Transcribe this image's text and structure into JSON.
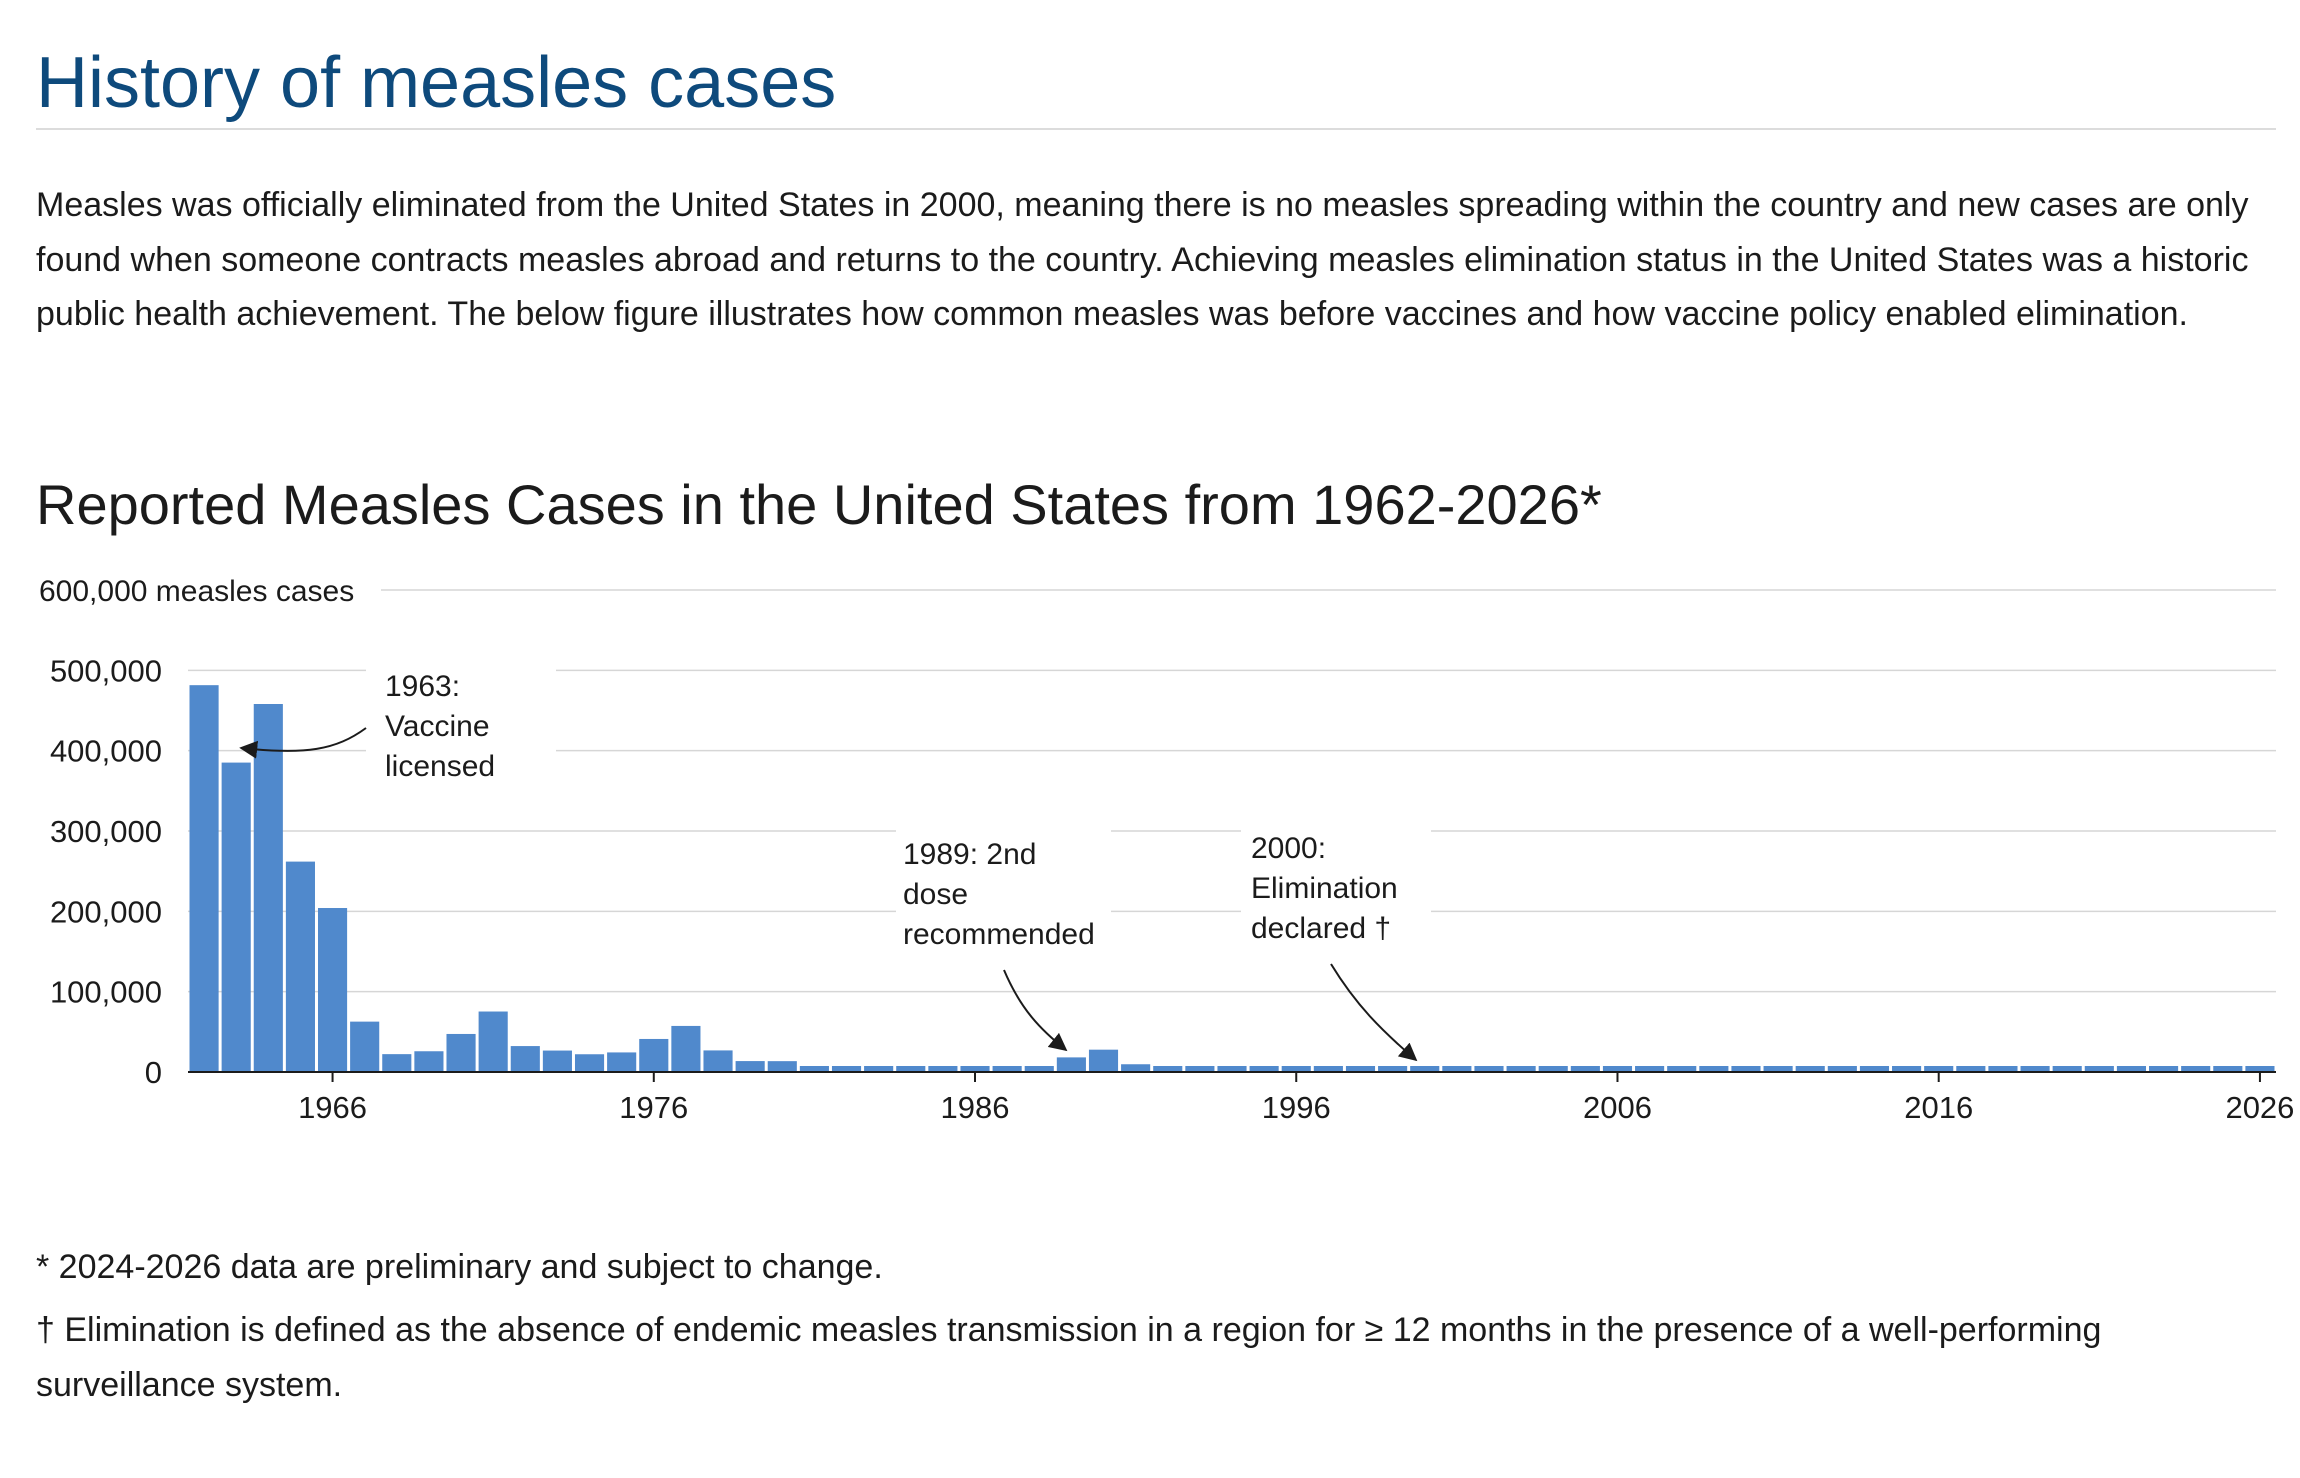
{
  "page": {
    "section_title": "History of measles cases",
    "intro": "Measles was officially eliminated from the United States in 2000, meaning there is no measles spreading within the country and new cases are only found when someone contracts measles abroad and returns to the country. Achieving measles elimination status in the United States was a historic public health achievement. The below figure illustrates how common measles was before vaccines and how vaccine policy enabled elimination.",
    "footnotes": {
      "preliminary": "* 2024-2026 data are preliminary and subject to change.",
      "elimination": "† Elimination is defined as the absence of endemic measles transmission in a region for ≥ 12 months in the presence of a well-performing surveillance system."
    }
  },
  "chart_data": {
    "type": "bar",
    "title": "Reported Measles Cases in the United States from 1962-2026*",
    "ylabel": "measles cases",
    "ylim": [
      0,
      600000
    ],
    "yticks": [
      {
        "value": 0,
        "label": "0"
      },
      {
        "value": 100000,
        "label": "100,000"
      },
      {
        "value": 200000,
        "label": "200,000"
      },
      {
        "value": 300000,
        "label": "300,000"
      },
      {
        "value": 400000,
        "label": "400,000"
      },
      {
        "value": 500000,
        "label": "500,000"
      },
      {
        "value": 600000,
        "label": "600,000 measles cases"
      }
    ],
    "xticks": [
      1966,
      1976,
      1986,
      1996,
      2006,
      2016,
      2026
    ],
    "grid": true,
    "bar_color": "#5089cc",
    "x": [
      1962,
      1963,
      1964,
      1965,
      1966,
      1967,
      1968,
      1969,
      1970,
      1971,
      1972,
      1973,
      1974,
      1975,
      1976,
      1977,
      1978,
      1979,
      1980,
      1981,
      1982,
      1983,
      1984,
      1985,
      1986,
      1987,
      1988,
      1989,
      1990,
      1991,
      1992,
      1993,
      1994,
      1995,
      1996,
      1997,
      1998,
      1999,
      2000,
      2001,
      2002,
      2003,
      2004,
      2005,
      2006,
      2007,
      2008,
      2009,
      2010,
      2011,
      2012,
      2013,
      2014,
      2015,
      2016,
      2017,
      2018,
      2019,
      2020,
      2021,
      2022,
      2023,
      2024,
      2025,
      2026
    ],
    "values": [
      481530,
      385156,
      458083,
      261904,
      204136,
      62705,
      22231,
      25826,
      47351,
      75290,
      32275,
      26690,
      22094,
      24374,
      41126,
      57345,
      26871,
      13597,
      13506,
      3124,
      1714,
      1497,
      2587,
      2822,
      6282,
      3655,
      3396,
      18193,
      27786,
      9643,
      2237,
      312,
      963,
      309,
      508,
      138,
      100,
      100,
      86,
      116,
      44,
      56,
      37,
      66,
      55,
      43,
      140,
      71,
      63,
      220,
      55,
      187,
      667,
      188,
      86,
      120,
      375,
      1274,
      13,
      49,
      121,
      59,
      285,
      2255,
      300
    ],
    "annotations": [
      {
        "text": [
          "1963:",
          "Vaccine",
          "licensed"
        ],
        "year": 1963
      },
      {
        "text": [
          "1989: 2nd",
          "dose",
          "recommended"
        ],
        "year": 1989
      },
      {
        "text": [
          "2000:",
          "Elimination",
          "declared †"
        ],
        "year": 2000
      }
    ]
  }
}
